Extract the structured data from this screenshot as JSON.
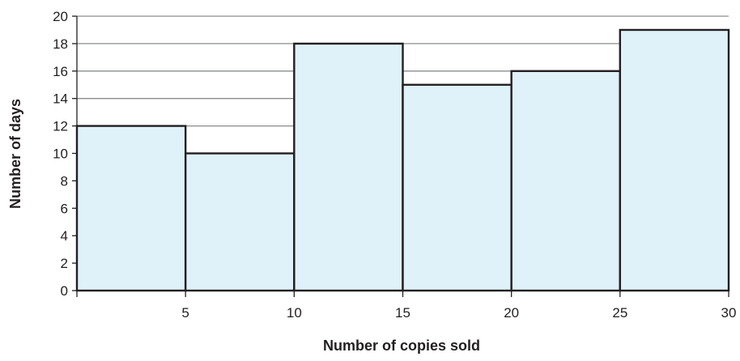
{
  "chart_data": {
    "type": "bar",
    "subtype": "histogram",
    "bin_edges": [
      0,
      5,
      10,
      15,
      20,
      25,
      30
    ],
    "values": [
      12,
      10,
      18,
      15,
      16,
      19
    ],
    "xlabel": "Number of copies sold",
    "ylabel": "Number of days",
    "xlim": [
      0,
      30
    ],
    "ylim": [
      0,
      20
    ],
    "x_ticks": [
      5,
      10,
      15,
      20,
      25,
      30
    ],
    "y_ticks": [
      0,
      2,
      4,
      6,
      8,
      10,
      12,
      14,
      16,
      18,
      20
    ],
    "grid": "horizontal",
    "bar_fill": "#dff1f9",
    "bar_stroke": "#231f20",
    "grid_color": "#8a8c8e",
    "axis_color": "#231f20"
  }
}
